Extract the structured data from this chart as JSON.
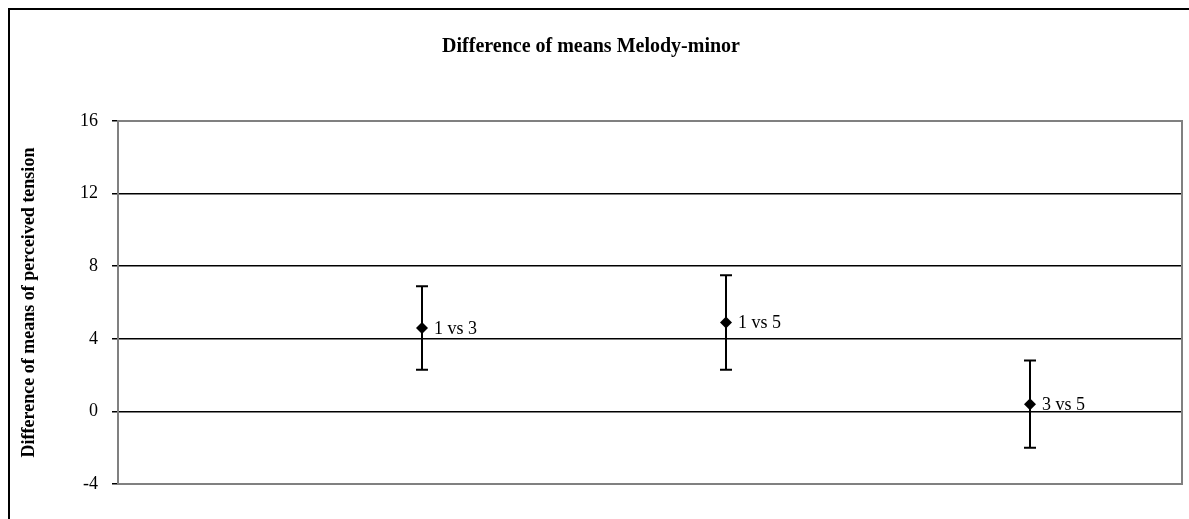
{
  "chart_data": {
    "type": "scatter",
    "title": "Difference of means Melody-minor",
    "ylabel": "Difference of means of perceived tension",
    "categories": [
      "1 vs 3",
      "1 vs 5",
      "3 vs 5"
    ],
    "values": [
      4.6,
      4.9,
      0.4
    ],
    "errors": [
      2.3,
      2.6,
      2.4
    ],
    "color": "#000000",
    "ylim": [
      -4,
      16
    ],
    "yticks": [
      -4,
      0,
      4,
      8,
      12,
      16
    ],
    "grid": "y",
    "marker": "diamond",
    "tick_labels": "y"
  }
}
